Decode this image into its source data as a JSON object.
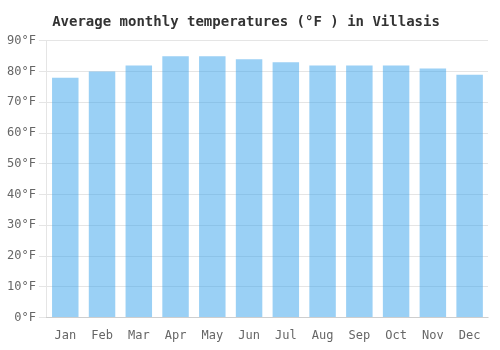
{
  "chart_data": {
    "type": "bar",
    "title": "Average monthly temperatures (°F ) in Villasis",
    "categories": [
      "Jan",
      "Feb",
      "Mar",
      "Apr",
      "May",
      "Jun",
      "Jul",
      "Aug",
      "Sep",
      "Oct",
      "Nov",
      "Dec"
    ],
    "values": [
      78,
      80,
      82,
      85,
      85,
      84,
      83,
      82,
      82,
      82,
      81,
      79
    ],
    "ylim": [
      0,
      90
    ],
    "yticks": [
      {
        "value": 0,
        "label": "0°F"
      },
      {
        "value": 10,
        "label": "10°F"
      },
      {
        "value": 20,
        "label": "20°F"
      },
      {
        "value": 30,
        "label": "30°F"
      },
      {
        "value": 40,
        "label": "40°F"
      },
      {
        "value": 50,
        "label": "50°F"
      },
      {
        "value": 60,
        "label": "60°F"
      },
      {
        "value": 70,
        "label": "70°F"
      },
      {
        "value": 80,
        "label": "80°F"
      },
      {
        "value": 90,
        "label": "90°F"
      }
    ],
    "grid": true
  }
}
